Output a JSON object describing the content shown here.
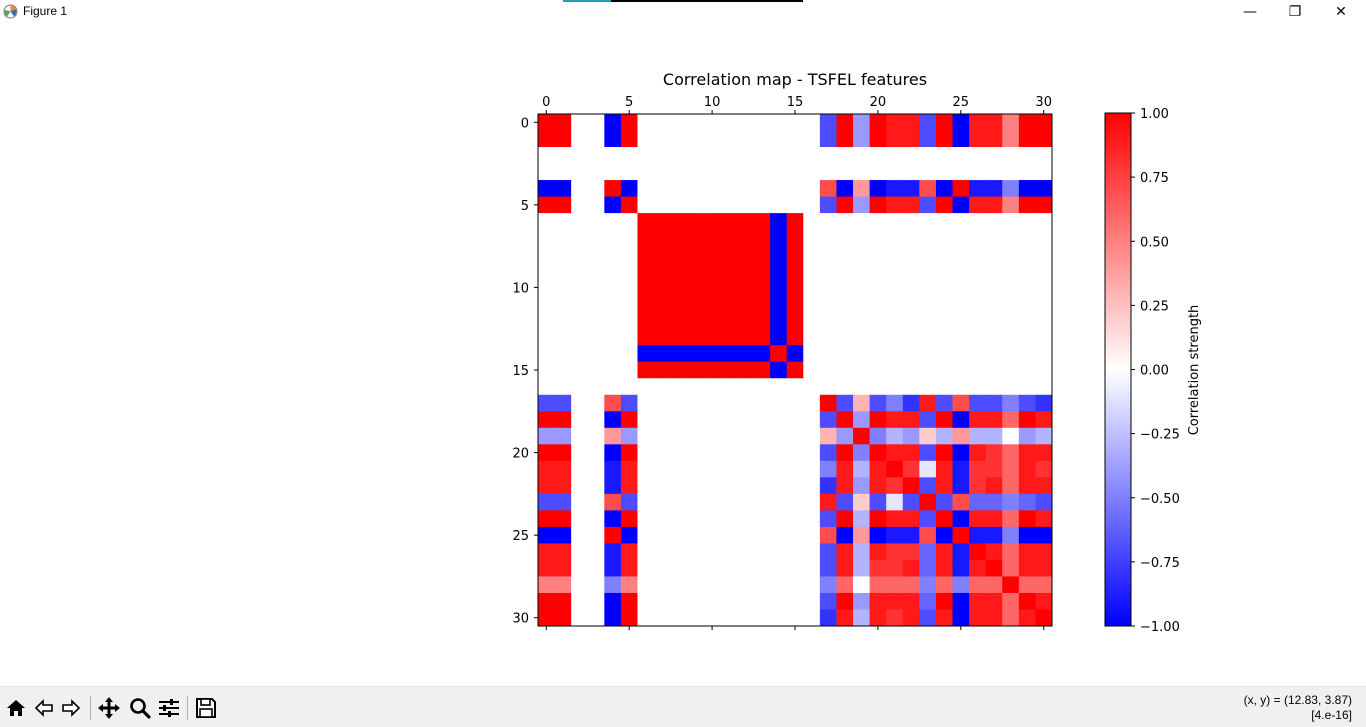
{
  "window": {
    "title": "Figure 1",
    "minimize_glyph": "—",
    "maximize_glyph": "❐",
    "close_glyph": "✕",
    "app_icon": "matplotlib-icon"
  },
  "toolbar": {
    "tools": [
      {
        "name": "home-icon",
        "label": "Home"
      },
      {
        "name": "back-icon",
        "label": "Back"
      },
      {
        "name": "forward-icon",
        "label": "Forward"
      },
      {
        "name": "pan-icon",
        "label": "Pan"
      },
      {
        "name": "zoom-icon",
        "label": "Zoom"
      },
      {
        "name": "configure-subplots-icon",
        "label": "Configure subplots"
      },
      {
        "name": "save-icon",
        "label": "Save"
      }
    ],
    "coords_line1": "(x, y) = (12.83, 3.87)",
    "coords_line2": "[4.e-16]"
  },
  "chart_data": {
    "type": "heatmap",
    "title": "Correlation map - TSFEL features",
    "x_ticks": [
      0,
      5,
      10,
      15,
      20,
      25,
      30
    ],
    "y_ticks": [
      0,
      5,
      10,
      15,
      20,
      25,
      30
    ],
    "x_range": [
      -0.5,
      30.5
    ],
    "y_range": [
      -0.5,
      30.5
    ],
    "x_tick_position": "top",
    "colormap": "bwr",
    "colorbar": {
      "label": "Correlation strength",
      "min": -1.0,
      "max": 1.0,
      "ticks": [
        "1.00",
        "0.75",
        "0.50",
        "0.25",
        "0.00",
        "−0.25",
        "−0.50",
        "−0.75",
        "−1.00"
      ]
    },
    "grid": false,
    "matrix": [
      [
        1.0,
        1.0,
        0,
        0,
        -1.0,
        1.0,
        0,
        0,
        0,
        0,
        0,
        0,
        0,
        0,
        0,
        0,
        0,
        -0.7,
        1.0,
        -0.4,
        1.0,
        0.9,
        0.9,
        -0.7,
        1.0,
        -1.0,
        0.9,
        0.9,
        0.5,
        1.0,
        1.0
      ],
      [
        1.0,
        1.0,
        0,
        0,
        -1.0,
        1.0,
        0,
        0,
        0,
        0,
        0,
        0,
        0,
        0,
        0,
        0,
        0,
        -0.7,
        1.0,
        -0.4,
        1.0,
        0.9,
        0.9,
        -0.7,
        1.0,
        -1.0,
        0.9,
        0.9,
        0.5,
        1.0,
        1.0
      ],
      [
        0,
        0,
        0,
        0,
        0,
        0,
        0,
        0,
        0,
        0,
        0,
        0,
        0,
        0,
        0,
        0,
        0,
        0,
        0,
        0,
        0,
        0,
        0,
        0,
        0,
        0,
        0,
        0,
        0,
        0,
        0
      ],
      [
        0,
        0,
        0,
        0,
        0,
        0,
        0,
        0,
        0,
        0,
        0,
        0,
        0,
        0,
        0,
        0,
        0,
        0,
        0,
        0,
        0,
        0,
        0,
        0,
        0,
        0,
        0,
        0,
        0,
        0,
        0
      ],
      [
        -1.0,
        -1.0,
        0,
        0,
        1.0,
        -1.0,
        0,
        0,
        0,
        0,
        0,
        0,
        0,
        0,
        0,
        0,
        0,
        0.7,
        -1.0,
        0.4,
        -1.0,
        -0.9,
        -0.9,
        0.7,
        -1.0,
        1.0,
        -0.9,
        -0.9,
        -0.5,
        -1.0,
        -1.0
      ],
      [
        1.0,
        1.0,
        0,
        0,
        -1.0,
        1.0,
        0,
        0,
        0,
        0,
        0,
        0,
        0,
        0,
        0,
        0,
        0,
        -0.7,
        1.0,
        -0.4,
        1.0,
        0.9,
        0.9,
        -0.7,
        1.0,
        -1.0,
        0.9,
        0.9,
        0.5,
        1.0,
        1.0
      ],
      [
        0,
        0,
        0,
        0,
        0,
        0,
        1.0,
        1.0,
        1.0,
        1.0,
        1.0,
        1.0,
        1.0,
        1.0,
        -1.0,
        1.0,
        0,
        0,
        0,
        0,
        0,
        0,
        0,
        0,
        0,
        0,
        0,
        0,
        0,
        0,
        0
      ],
      [
        0,
        0,
        0,
        0,
        0,
        0,
        1.0,
        1.0,
        1.0,
        1.0,
        1.0,
        1.0,
        1.0,
        1.0,
        -1.0,
        1.0,
        0,
        0,
        0,
        0,
        0,
        0,
        0,
        0,
        0,
        0,
        0,
        0,
        0,
        0,
        0
      ],
      [
        0,
        0,
        0,
        0,
        0,
        0,
        1.0,
        1.0,
        1.0,
        1.0,
        1.0,
        1.0,
        1.0,
        1.0,
        -1.0,
        1.0,
        0,
        0,
        0,
        0,
        0,
        0,
        0,
        0,
        0,
        0,
        0,
        0,
        0,
        0,
        0
      ],
      [
        0,
        0,
        0,
        0,
        0,
        0,
        1.0,
        1.0,
        1.0,
        1.0,
        1.0,
        1.0,
        1.0,
        1.0,
        -1.0,
        1.0,
        0,
        0,
        0,
        0,
        0,
        0,
        0,
        0,
        0,
        0,
        0,
        0,
        0,
        0,
        0
      ],
      [
        0,
        0,
        0,
        0,
        0,
        0,
        1.0,
        1.0,
        1.0,
        1.0,
        1.0,
        1.0,
        1.0,
        1.0,
        -1.0,
        1.0,
        0,
        0,
        0,
        0,
        0,
        0,
        0,
        0,
        0,
        0,
        0,
        0,
        0,
        0,
        0
      ],
      [
        0,
        0,
        0,
        0,
        0,
        0,
        1.0,
        1.0,
        1.0,
        1.0,
        1.0,
        1.0,
        1.0,
        1.0,
        -1.0,
        1.0,
        0,
        0,
        0,
        0,
        0,
        0,
        0,
        0,
        0,
        0,
        0,
        0,
        0,
        0,
        0
      ],
      [
        0,
        0,
        0,
        0,
        0,
        0,
        1.0,
        1.0,
        1.0,
        1.0,
        1.0,
        1.0,
        1.0,
        1.0,
        -1.0,
        1.0,
        0,
        0,
        0,
        0,
        0,
        0,
        0,
        0,
        0,
        0,
        0,
        0,
        0,
        0,
        0
      ],
      [
        0,
        0,
        0,
        0,
        0,
        0,
        1.0,
        1.0,
        1.0,
        1.0,
        1.0,
        1.0,
        1.0,
        1.0,
        -1.0,
        1.0,
        0,
        0,
        0,
        0,
        0,
        0,
        0,
        0,
        0,
        0,
        0,
        0,
        0,
        0,
        0
      ],
      [
        0,
        0,
        0,
        0,
        0,
        0,
        -1.0,
        -1.0,
        -1.0,
        -1.0,
        -1.0,
        -1.0,
        -1.0,
        -1.0,
        1.0,
        -1.0,
        0,
        0,
        0,
        0,
        0,
        0,
        0,
        0,
        0,
        0,
        0,
        0,
        0,
        0,
        0
      ],
      [
        0,
        0,
        0,
        0,
        0,
        0,
        1.0,
        1.0,
        1.0,
        1.0,
        1.0,
        1.0,
        1.0,
        1.0,
        -1.0,
        1.0,
        0,
        0,
        0,
        0,
        0,
        0,
        0,
        0,
        0,
        0,
        0,
        0,
        0,
        0,
        0
      ],
      [
        0,
        0,
        0,
        0,
        0,
        0,
        0,
        0,
        0,
        0,
        0,
        0,
        0,
        0,
        0,
        0,
        0,
        0,
        0,
        0,
        0,
        0,
        0,
        0,
        0,
        0,
        0,
        0,
        0,
        0,
        0
      ],
      [
        -0.7,
        -0.7,
        0,
        0,
        0.7,
        -0.7,
        0,
        0,
        0,
        0,
        0,
        0,
        0,
        0,
        0,
        0,
        0,
        1.0,
        -0.7,
        0.3,
        -0.7,
        -0.5,
        -0.8,
        0.9,
        -0.7,
        0.7,
        -0.7,
        -0.7,
        -0.5,
        -0.7,
        -0.8
      ],
      [
        1.0,
        1.0,
        0,
        0,
        -1.0,
        1.0,
        0,
        0,
        0,
        0,
        0,
        0,
        0,
        0,
        0,
        0,
        0,
        -0.7,
        1.0,
        -0.4,
        1.0,
        0.9,
        0.9,
        -0.7,
        1.0,
        -1.0,
        0.9,
        0.9,
        0.6,
        1.0,
        0.9
      ],
      [
        -0.4,
        -0.4,
        0,
        0,
        0.4,
        -0.4,
        0,
        0,
        0,
        0,
        0,
        0,
        0,
        0,
        0,
        0,
        0,
        0.3,
        -0.4,
        1.0,
        -0.5,
        -0.3,
        -0.4,
        0.2,
        -0.3,
        0.4,
        -0.3,
        -0.3,
        0.0,
        -0.4,
        -0.3
      ],
      [
        1.0,
        1.0,
        0,
        0,
        -1.0,
        1.0,
        0,
        0,
        0,
        0,
        0,
        0,
        0,
        0,
        0,
        0,
        0,
        -0.7,
        1.0,
        -0.5,
        1.0,
        0.9,
        0.9,
        -0.7,
        1.0,
        -1.0,
        0.9,
        0.8,
        0.6,
        0.9,
        0.9
      ],
      [
        0.9,
        0.9,
        0,
        0,
        -0.9,
        0.9,
        0,
        0,
        0,
        0,
        0,
        0,
        0,
        0,
        0,
        0,
        0,
        -0.5,
        0.9,
        -0.3,
        0.9,
        1.0,
        0.8,
        -0.1,
        0.9,
        -0.9,
        0.8,
        0.8,
        0.6,
        0.9,
        0.8
      ],
      [
        0.9,
        0.9,
        0,
        0,
        -0.9,
        0.9,
        0,
        0,
        0,
        0,
        0,
        0,
        0,
        0,
        0,
        0,
        0,
        -0.8,
        0.9,
        -0.4,
        0.9,
        0.8,
        1.0,
        -0.7,
        0.9,
        -0.9,
        0.8,
        0.9,
        0.6,
        0.9,
        0.9
      ],
      [
        -0.7,
        -0.7,
        0,
        0,
        0.7,
        -0.7,
        0,
        0,
        0,
        0,
        0,
        0,
        0,
        0,
        0,
        0,
        0,
        0.9,
        -0.7,
        0.2,
        -0.7,
        -0.1,
        -0.7,
        1.0,
        -0.7,
        0.7,
        -0.6,
        -0.6,
        -0.5,
        -0.6,
        -0.7
      ],
      [
        1.0,
        1.0,
        0,
        0,
        -1.0,
        1.0,
        0,
        0,
        0,
        0,
        0,
        0,
        0,
        0,
        0,
        0,
        0,
        -0.7,
        1.0,
        -0.3,
        1.0,
        0.9,
        0.9,
        -0.7,
        1.0,
        -1.0,
        0.9,
        0.9,
        0.6,
        1.0,
        0.9
      ],
      [
        -1.0,
        -1.0,
        0,
        0,
        1.0,
        -1.0,
        0,
        0,
        0,
        0,
        0,
        0,
        0,
        0,
        0,
        0,
        0,
        0.7,
        -1.0,
        0.4,
        -1.0,
        -0.9,
        -0.9,
        0.7,
        -1.0,
        1.0,
        -0.9,
        -0.9,
        -0.5,
        -1.0,
        -1.0
      ],
      [
        0.9,
        0.9,
        0,
        0,
        -0.9,
        0.9,
        0,
        0,
        0,
        0,
        0,
        0,
        0,
        0,
        0,
        0,
        0,
        -0.7,
        0.9,
        -0.3,
        0.9,
        0.8,
        0.8,
        -0.6,
        0.9,
        -0.9,
        1.0,
        0.9,
        0.6,
        0.9,
        0.9
      ],
      [
        0.9,
        0.9,
        0,
        0,
        -0.9,
        0.9,
        0,
        0,
        0,
        0,
        0,
        0,
        0,
        0,
        0,
        0,
        0,
        -0.7,
        0.9,
        -0.3,
        0.8,
        0.8,
        0.9,
        -0.6,
        0.9,
        -0.9,
        0.9,
        1.0,
        0.6,
        0.9,
        0.9
      ],
      [
        0.5,
        0.5,
        0,
        0,
        -0.5,
        0.5,
        0,
        0,
        0,
        0,
        0,
        0,
        0,
        0,
        0,
        0,
        0,
        -0.5,
        0.6,
        0.0,
        0.6,
        0.6,
        0.6,
        -0.5,
        0.6,
        -0.5,
        0.6,
        0.6,
        1.0,
        0.6,
        0.6
      ],
      [
        1.0,
        1.0,
        0,
        0,
        -1.0,
        1.0,
        0,
        0,
        0,
        0,
        0,
        0,
        0,
        0,
        0,
        0,
        0,
        -0.7,
        1.0,
        -0.4,
        0.9,
        0.9,
        0.9,
        -0.6,
        1.0,
        -1.0,
        0.9,
        0.9,
        0.6,
        1.0,
        0.9
      ],
      [
        1.0,
        1.0,
        0,
        0,
        -1.0,
        1.0,
        0,
        0,
        0,
        0,
        0,
        0,
        0,
        0,
        0,
        0,
        0,
        -0.8,
        0.9,
        -0.3,
        0.9,
        0.8,
        0.9,
        -0.7,
        0.9,
        -1.0,
        0.9,
        0.9,
        0.6,
        0.9,
        1.0
      ]
    ]
  }
}
